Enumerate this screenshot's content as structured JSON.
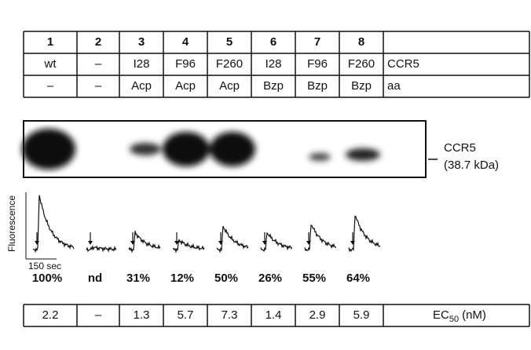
{
  "table": {
    "rows": [
      [
        "1",
        "2",
        "3",
        "4",
        "5",
        "6",
        "7",
        "8"
      ],
      [
        "wt",
        "–",
        "I28",
        "F96",
        "F260",
        "I28",
        "F96",
        "F260",
        "CCR5"
      ],
      [
        "–",
        "–",
        "Acp",
        "Acp",
        "Acp",
        "Bzp",
        "Bzp",
        "Bzp",
        "aa"
      ]
    ]
  },
  "blot": {
    "label": "CCR5",
    "size": "(38.7 kDa)"
  },
  "traces": {
    "y_label": "Fluorescence",
    "scale_label": "150 sec"
  },
  "responses": [
    "100%",
    "nd",
    "31%",
    "12%",
    "50%",
    "26%",
    "55%",
    "64%"
  ],
  "ec50": {
    "values": [
      "2.2",
      "–",
      "1.3",
      "5.7",
      "7.3",
      "1.4",
      "2.9",
      "5.9"
    ],
    "label": "EC",
    "label_sub": "50",
    "label_unit": "(nM)"
  }
}
